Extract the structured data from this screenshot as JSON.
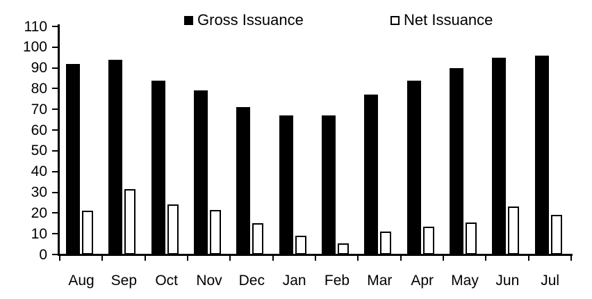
{
  "chart_data": {
    "type": "bar",
    "title": "",
    "xlabel": "",
    "ylabel": "",
    "categories": [
      "Aug",
      "Sep",
      "Oct",
      "Nov",
      "Dec",
      "Jan",
      "Feb",
      "Mar",
      "Apr",
      "May",
      "Jun",
      "Jul"
    ],
    "series": [
      {
        "name": "Gross Issuance",
        "style": "filled",
        "fill": "#000000",
        "values": [
          92,
          94,
          84,
          79,
          71,
          67,
          67,
          77,
          84,
          90,
          95,
          96
        ]
      },
      {
        "name": "Net Issuance",
        "style": "open",
        "fill": "#ffffff",
        "stroke": "#000000",
        "values": [
          21,
          31.5,
          24,
          21.5,
          15,
          9,
          5.5,
          11,
          13.5,
          15.5,
          23,
          19
        ]
      }
    ],
    "ylim": [
      0,
      110
    ],
    "ytick_step": 10,
    "ytick_labels": [
      "0",
      "10",
      "20",
      "30",
      "40",
      "50",
      "60",
      "70",
      "80",
      "90",
      "100",
      "110"
    ],
    "grid": false,
    "legend_position": "top",
    "background_color": "#ffffff",
    "axis_color": "#000000"
  }
}
